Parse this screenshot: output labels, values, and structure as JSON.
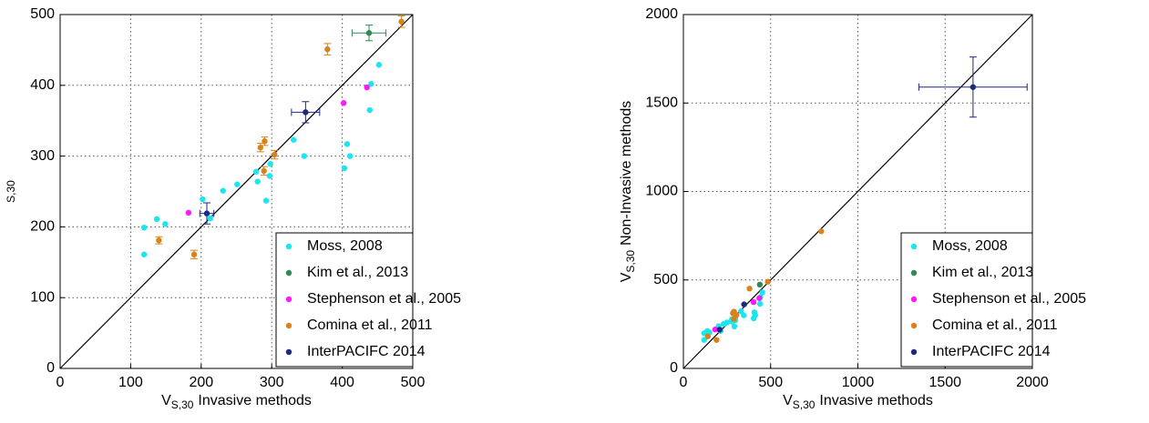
{
  "chart_data": [
    {
      "type": "scatter",
      "xlabel": {
        "text": "V",
        "sub": "S,30",
        "after": "Invasive methods"
      },
      "ylabel": {
        "sub": "S,30"
      },
      "xlim": [
        0,
        500
      ],
      "ylim": [
        0,
        500
      ],
      "xticks": [
        0,
        100,
        200,
        300,
        400,
        500
      ],
      "yticks": [
        0,
        100,
        200,
        300,
        400,
        500
      ],
      "grid": true,
      "identity_line": true,
      "legend": "lower right",
      "series": [
        {
          "name": "Moss, 2008",
          "color": "#19e6ef",
          "x": [
            119,
            119,
            137,
            149,
            202,
            213,
            231,
            251,
            278,
            280,
            292,
            297,
            298,
            331,
            346,
            407,
            403,
            411,
            439,
            452,
            441
          ],
          "y": [
            199,
            161,
            211,
            204,
            239,
            212,
            251,
            260,
            278,
            264,
            237,
            272,
            289,
            323,
            300,
            317,
            283,
            300,
            365,
            429,
            402
          ]
        },
        {
          "name": "Kim et al., 2013",
          "color": "#2e8b57",
          "x": [
            438
          ],
          "y": [
            474
          ],
          "xerr": [
            24
          ],
          "yerr": [
            11
          ]
        },
        {
          "name": "Stephenson et al., 2005",
          "color": "#ff19ff",
          "x": [
            182,
            402,
            435
          ],
          "y": [
            220,
            375,
            397
          ]
        },
        {
          "name": "Comina et al., 2011",
          "color": "#d9821b",
          "x": [
            140,
            190,
            289,
            284,
            290,
            304,
            379,
            484
          ],
          "y": [
            181,
            161,
            279,
            312,
            321,
            302,
            451,
            490
          ],
          "yerr": [
            5,
            6,
            6,
            6,
            6,
            6,
            8,
            8
          ]
        },
        {
          "name": "InterPACIFC 2014",
          "color": "#1c2a80",
          "x": [
            348,
            208
          ],
          "y": [
            362,
            219
          ],
          "xerr": [
            20,
            10
          ],
          "yerr": [
            15,
            15
          ]
        }
      ]
    },
    {
      "type": "scatter",
      "xlabel": {
        "text": "V",
        "sub": "S,30",
        "after": "Invasive methods"
      },
      "ylabel": {
        "text": "V",
        "sub": "S,30",
        "after": "Non-Invasive methods"
      },
      "xlim": [
        0,
        2000
      ],
      "ylim": [
        0,
        2000
      ],
      "xticks": [
        0,
        500,
        1000,
        1500,
        2000
      ],
      "yticks": [
        0,
        500,
        1000,
        1500,
        2000
      ],
      "grid": true,
      "identity_line": true,
      "legend": "lower right",
      "series": [
        {
          "name": "Moss, 2008",
          "color": "#19e6ef",
          "x": [
            119,
            119,
            137,
            149,
            202,
            213,
            231,
            251,
            278,
            280,
            292,
            297,
            298,
            331,
            346,
            407,
            403,
            411,
            439,
            452,
            441
          ],
          "y": [
            199,
            161,
            211,
            204,
            239,
            212,
            251,
            260,
            278,
            264,
            237,
            272,
            289,
            323,
            300,
            317,
            283,
            300,
            365,
            429,
            402
          ]
        },
        {
          "name": "Kim et al., 2013",
          "color": "#2e8b57",
          "x": [
            438
          ],
          "y": [
            474
          ]
        },
        {
          "name": "Stephenson et al., 2005",
          "color": "#ff19ff",
          "x": [
            182,
            402,
            435
          ],
          "y": [
            220,
            375,
            397
          ]
        },
        {
          "name": "Comina et al., 2011",
          "color": "#d9821b",
          "x": [
            140,
            190,
            289,
            284,
            290,
            304,
            379,
            484,
            790
          ],
          "y": [
            181,
            161,
            279,
            312,
            321,
            302,
            451,
            490,
            775
          ]
        },
        {
          "name": "InterPACIFC 2014",
          "color": "#1c2a80",
          "x": [
            348,
            208,
            1660
          ],
          "y": [
            362,
            219,
            1590
          ],
          "xerr": [
            0,
            0,
            310
          ],
          "yerr": [
            0,
            0,
            170
          ]
        }
      ]
    }
  ]
}
